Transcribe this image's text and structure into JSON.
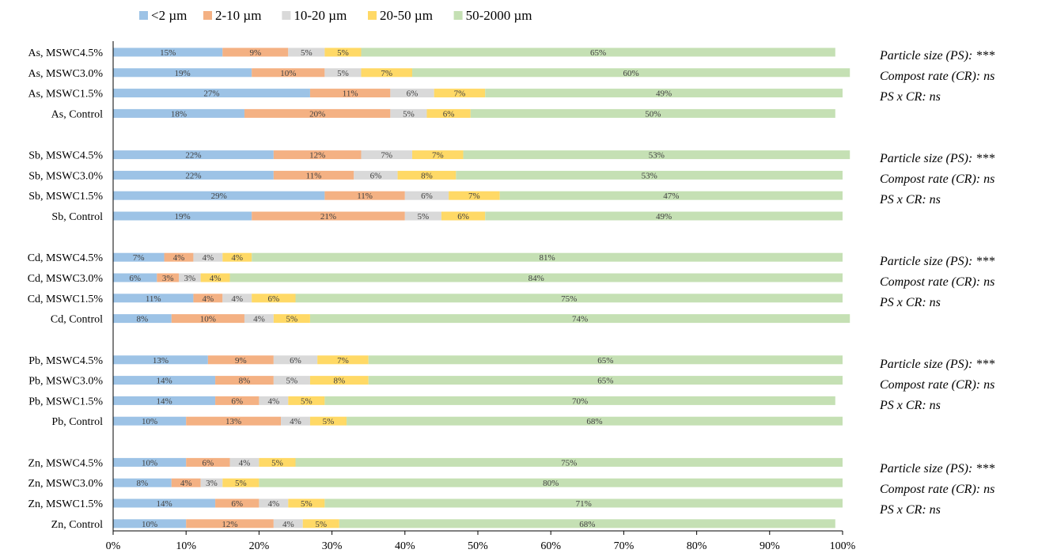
{
  "chart_data": {
    "type": "bar",
    "orientation": "horizontal",
    "stacked": true,
    "normalized_percent": true,
    "legend_position": "top",
    "grid": false,
    "xlim": [
      0,
      100
    ],
    "x_tick_labels": [
      "0%",
      "10%",
      "20%",
      "30%",
      "40%",
      "50%",
      "60%",
      "70%",
      "80%",
      "90%",
      "100%"
    ],
    "categories": [
      "As, MSWC4.5%",
      "As, MSWC3.0%",
      "As, MSWC1.5%",
      "As, Control",
      "Sb, MSWC4.5%",
      "Sb, MSWC3.0%",
      "Sb, MSWC1.5%",
      "Sb, Control",
      "Cd, MSWC4.5%",
      "Cd, MSWC3.0%",
      "Cd, MSWC1.5%",
      "Cd, Control",
      "Pb, MSWC4.5%",
      "Pb, MSWC3.0%",
      "Pb, MSWC1.5%",
      "Pb, Control",
      "Zn, MSWC4.5%",
      "Zn, MSWC3.0%",
      "Zn, MSWC1.5%",
      "Zn, Control"
    ],
    "series": [
      {
        "name": "<2 µm",
        "color": "#9dc3e6",
        "values": [
          15,
          19,
          27,
          18,
          22,
          22,
          29,
          19,
          7,
          6,
          11,
          8,
          13,
          14,
          14,
          10,
          10,
          8,
          14,
          10
        ]
      },
      {
        "name": "2-10 µm",
        "color": "#f4b183",
        "values": [
          9,
          10,
          11,
          20,
          12,
          11,
          11,
          21,
          4,
          3,
          4,
          10,
          9,
          8,
          6,
          13,
          6,
          4,
          6,
          12
        ]
      },
      {
        "name": "10-20 µm",
        "color": "#d9d9d9",
        "values": [
          5,
          5,
          6,
          5,
          7,
          6,
          6,
          5,
          4,
          3,
          4,
          4,
          6,
          5,
          4,
          4,
          4,
          3,
          4,
          4
        ]
      },
      {
        "name": "20-50 µm",
        "color": "#ffd966",
        "values": [
          5,
          7,
          7,
          6,
          7,
          8,
          7,
          6,
          4,
          4,
          6,
          5,
          7,
          8,
          5,
          5,
          5,
          5,
          5,
          5
        ]
      },
      {
        "name": "50-2000 µm",
        "color": "#c5e0b4",
        "values": [
          65,
          60,
          49,
          50,
          53,
          53,
          47,
          49,
          81,
          84,
          75,
          74,
          65,
          65,
          70,
          68,
          75,
          80,
          71,
          68
        ]
      }
    ]
  },
  "stats_annotations": [
    {
      "group": "As",
      "lines": [
        "Particle size (PS): ***",
        "Compost rate (CR): ns",
        "PS x CR: ns"
      ]
    },
    {
      "group": "Sb",
      "lines": [
        "Particle size (PS): ***",
        "Compost rate (CR): ns",
        "PS x CR: ns"
      ]
    },
    {
      "group": "Cd",
      "lines": [
        "Particle size (PS): ***",
        "Compost rate (CR): ns",
        "PS x CR: ns"
      ]
    },
    {
      "group": "Pb",
      "lines": [
        "Particle size (PS): ***",
        "Compost rate (CR): ns",
        "PS x CR: ns"
      ]
    },
    {
      "group": "Zn",
      "lines": [
        "Particle size (PS): ***",
        "Compost rate (CR): ns",
        "PS x CR: ns"
      ]
    }
  ]
}
